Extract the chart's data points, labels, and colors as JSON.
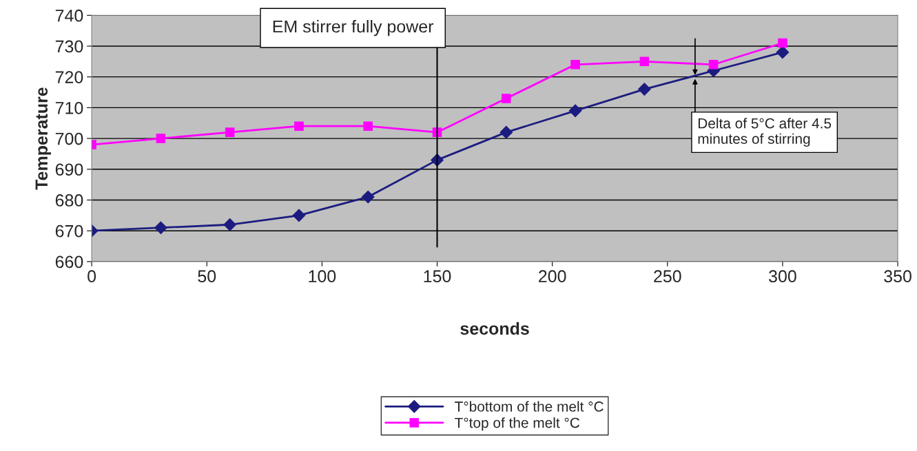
{
  "chart_data": {
    "type": "line",
    "xlabel": "seconds",
    "ylabel": "Temperature",
    "x": [
      0,
      30,
      60,
      90,
      120,
      150,
      180,
      210,
      240,
      270,
      300
    ],
    "series": [
      {
        "name": "T°bottom of the melt °C",
        "color": "#1c1c80",
        "marker": "diamond",
        "values": [
          670,
          671,
          672,
          675,
          681,
          693,
          702,
          709,
          716,
          722,
          728
        ]
      },
      {
        "name": "T°top of the melt °C",
        "color": "#ff00ff",
        "marker": "square",
        "values": [
          698,
          700,
          702,
          704,
          704,
          702,
          713,
          724,
          725,
          724,
          731
        ]
      }
    ],
    "xlim": [
      0,
      350
    ],
    "xticks": [
      0,
      50,
      100,
      150,
      200,
      250,
      300,
      350
    ],
    "ylim": [
      660,
      740
    ],
    "yticks": [
      660,
      670,
      680,
      690,
      700,
      710,
      720,
      730,
      740
    ],
    "grid": "y",
    "legend": "bottom",
    "line_style": "solid",
    "ref_lines": [
      {
        "axis": "x",
        "value": 150,
        "label": "EM stirrer fully power",
        "color": "#000000"
      }
    ],
    "annotations": [
      {
        "text": "Delta of 5°C after 4.5 minutes of stirring",
        "x": 262,
        "y": 720
      }
    ]
  }
}
